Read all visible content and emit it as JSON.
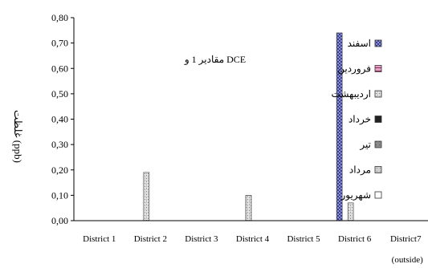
{
  "chart_data": {
    "type": "bar",
    "title": "",
    "annotation": "مقادیر 1 و DCE",
    "ylabel": "غلظت (ppb)",
    "xlabel": "",
    "ylim": [
      0,
      0.8
    ],
    "yticks": [
      "0,00",
      "0,10",
      "0,20",
      "0,30",
      "0,40",
      "0,50",
      "0,60",
      "0,70",
      "0,80"
    ],
    "categories": [
      "District 1",
      "District 2",
      "District 3",
      "District 4",
      "District 5",
      "District 6",
      "District7"
    ],
    "category_sublabel": {
      "District7": "(outside)"
    },
    "legend_position": "right",
    "grid": false,
    "series": [
      {
        "name": "اسفند",
        "color": "#6a6fb8",
        "values": [
          0,
          0,
          0,
          0,
          0,
          0.74,
          0
        ]
      },
      {
        "name": "فروردین",
        "color": "#b85a8a",
        "values": [
          0,
          0,
          0,
          0,
          0,
          0,
          0
        ]
      },
      {
        "name": "اردیبهشت",
        "color": "#d8d8d8",
        "values": [
          0,
          0.19,
          0,
          0.1,
          0,
          0.07,
          0
        ]
      },
      {
        "name": "خرداد",
        "color": "#222222",
        "values": [
          0,
          0,
          0,
          0,
          0,
          0,
          0
        ]
      },
      {
        "name": "تیر",
        "color": "#8a8a8a",
        "values": [
          0,
          0,
          0,
          0,
          0,
          0,
          0
        ]
      },
      {
        "name": "مرداد",
        "color": "#bfbfbf",
        "values": [
          0,
          0,
          0,
          0,
          0,
          0,
          0
        ]
      },
      {
        "name": "شهریور",
        "color": "#ffffff",
        "values": [
          0,
          0,
          0,
          0,
          0,
          0,
          0
        ]
      }
    ]
  }
}
